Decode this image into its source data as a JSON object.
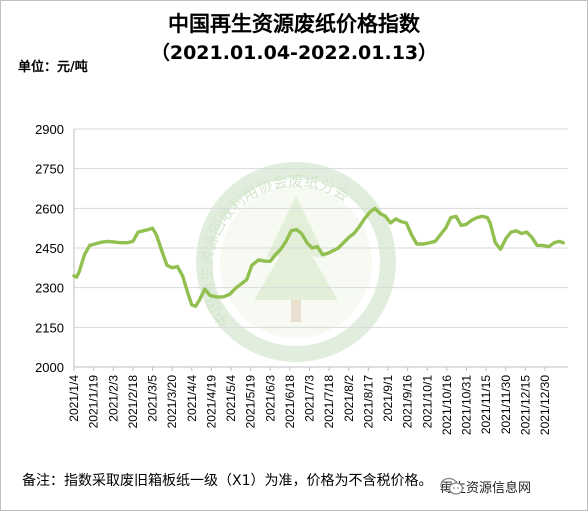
{
  "chart_data": {
    "type": "line",
    "title": "中国再生资源废纸价格指数",
    "subtitle": "（2021.01.04-2022.01.13）",
    "unit_label": "单位：元/吨",
    "ylabel": "",
    "xlabel": "",
    "ylim": [
      2000,
      2900
    ],
    "yticks": [
      2000,
      2150,
      2300,
      2450,
      2600,
      2750,
      2900
    ],
    "xtick_labels": [
      "2021/1/4",
      "2021/1/19",
      "2021/2/3",
      "2021/2/18",
      "2021/3/5",
      "2021/3/20",
      "2021/4/4",
      "2021/4/19",
      "2021/5/4",
      "2021/5/19",
      "2021/6/3",
      "2021/6/18",
      "2021/7/3",
      "2021/7/18",
      "2021/8/2",
      "2021/8/17",
      "2021/9/1",
      "2021/9/16",
      "2021/10/1",
      "2021/10/16",
      "2021/10/31",
      "2021/11/15",
      "2021/11/30",
      "2021/12/15",
      "2021/12/30"
    ],
    "grid": true,
    "legend": "none",
    "line_color": "#92c050",
    "series": [
      {
        "x": [
          "2021/1/4",
          "2021/1/6",
          "2021/1/8",
          "2021/1/12",
          "2021/1/16",
          "2021/1/20",
          "2021/1/25",
          "2021/1/30",
          "2021/2/3",
          "2021/2/8",
          "2021/2/14",
          "2021/2/18",
          "2021/2/22",
          "2021/2/26",
          "2021/3/2",
          "2021/3/5",
          "2021/3/8",
          "2021/3/12",
          "2021/3/16",
          "2021/3/20",
          "2021/3/24",
          "2021/3/28",
          "2021/4/1",
          "2021/4/4",
          "2021/4/7",
          "2021/4/10",
          "2021/4/14",
          "2021/4/18",
          "2021/4/23",
          "2021/4/28",
          "2021/5/3",
          "2021/5/8",
          "2021/5/12",
          "2021/5/16",
          "2021/5/20",
          "2021/5/25",
          "2021/5/30",
          "2021/6/3",
          "2021/6/7",
          "2021/6/11",
          "2021/6/15",
          "2021/6/19",
          "2021/6/23",
          "2021/6/27",
          "2021/7/1",
          "2021/7/5",
          "2021/7/9",
          "2021/7/13",
          "2021/7/17",
          "2021/7/21",
          "2021/7/25",
          "2021/7/29",
          "2021/8/2",
          "2021/8/6",
          "2021/8/10",
          "2021/8/14",
          "2021/8/18",
          "2021/8/22",
          "2021/8/26",
          "2021/8/30",
          "2021/9/3",
          "2021/9/7",
          "2021/9/11",
          "2021/9/15",
          "2021/9/19",
          "2021/9/23",
          "2021/9/28",
          "2021/10/3",
          "2021/10/7",
          "2021/10/11",
          "2021/10/15",
          "2021/10/19",
          "2021/10/23",
          "2021/10/27",
          "2021/10/31",
          "2021/11/4",
          "2021/11/8",
          "2021/11/12",
          "2021/11/16",
          "2021/11/18",
          "2021/11/22",
          "2021/11/26",
          "2021/11/30",
          "2021/12/4",
          "2021/12/8",
          "2021/12/12",
          "2021/12/16",
          "2021/12/20",
          "2021/12/24",
          "2021/12/28",
          "2022/1/2",
          "2022/1/6",
          "2022/1/10",
          "2022/1/13"
        ],
        "values": [
          2345,
          2340,
          2360,
          2425,
          2460,
          2465,
          2472,
          2475,
          2473,
          2470,
          2470,
          2475,
          2510,
          2515,
          2520,
          2525,
          2500,
          2440,
          2385,
          2375,
          2380,
          2345,
          2280,
          2235,
          2230,
          2255,
          2295,
          2270,
          2265,
          2265,
          2275,
          2300,
          2315,
          2330,
          2385,
          2405,
          2400,
          2400,
          2425,
          2445,
          2475,
          2515,
          2520,
          2505,
          2470,
          2450,
          2455,
          2425,
          2430,
          2440,
          2450,
          2470,
          2490,
          2505,
          2530,
          2560,
          2585,
          2600,
          2580,
          2570,
          2545,
          2560,
          2550,
          2545,
          2500,
          2465,
          2465,
          2470,
          2475,
          2500,
          2525,
          2565,
          2570,
          2535,
          2540,
          2555,
          2565,
          2570,
          2565,
          2545,
          2470,
          2445,
          2485,
          2510,
          2515,
          2505,
          2510,
          2490,
          2460,
          2460,
          2455,
          2470,
          2475,
          2470
        ]
      }
    ]
  },
  "watermark_text": "中国再生资源回收利用协会废纸分会",
  "footer": {
    "note": "备注：指数采取废旧箱板纸一级（X1）为准，价格为不含税价格。",
    "wechat_label": "再生资源信息网",
    "wechat_icon": "wechat-icon"
  }
}
